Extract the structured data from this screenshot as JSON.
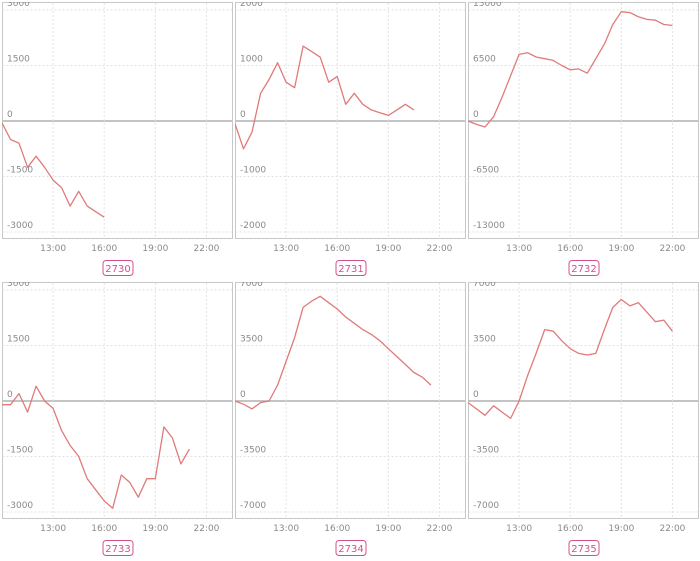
{
  "line_color": "#e07a7a",
  "badge_color": "#d4508a",
  "chart_data": [
    {
      "type": "line",
      "title": "2730",
      "x_tick_labels": [
        "13:00",
        "16:00",
        "19:00",
        "22:00"
      ],
      "y_ticks": [
        3000,
        1500,
        0,
        -1500,
        -3000
      ],
      "y_tick_labels": [
        "3000",
        "1500",
        "0",
        "-1500",
        "-3000"
      ],
      "ylim": [
        -3000,
        3000
      ],
      "grid": true,
      "series": [
        {
          "x": [
            "10:00",
            "10:30",
            "11:00",
            "11:30",
            "12:00",
            "12:30",
            "13:00",
            "13:30",
            "14:00",
            "14:30",
            "15:00",
            "15:30",
            "16:00",
            "16:30"
          ],
          "values": [
            -50,
            -500,
            -600,
            -1250,
            -950,
            -1250,
            -1600,
            -1800,
            -2300,
            -1900,
            -2300,
            -2450,
            -2600,
            null
          ]
        }
      ]
    },
    {
      "type": "line",
      "title": "2731",
      "x_tick_labels": [
        "13:00",
        "16:00",
        "19:00",
        "22:00"
      ],
      "y_ticks": [
        2000,
        1000,
        0,
        -1000,
        -2000
      ],
      "y_tick_labels": [
        "2000",
        "1000",
        "0",
        "-1000",
        "-2000"
      ],
      "ylim": [
        -2000,
        2000
      ],
      "grid": true,
      "series": [
        {
          "x": [
            "10:00",
            "10:30",
            "11:00",
            "11:30",
            "12:00",
            "12:30",
            "13:00",
            "13:30",
            "14:00",
            "14:30",
            "15:00",
            "15:30",
            "16:00",
            "16:30",
            "17:00",
            "17:30",
            "18:00",
            "18:30",
            "19:00",
            "19:30",
            "20:00",
            "20:30",
            "21:00"
          ],
          "values": [
            -50,
            -500,
            -200,
            500,
            750,
            1050,
            700,
            600,
            1350,
            1250,
            1150,
            700,
            800,
            300,
            500,
            300,
            200,
            150,
            100,
            200,
            300,
            200,
            null
          ]
        }
      ]
    },
    {
      "type": "line",
      "title": "2732",
      "x_tick_labels": [
        "13:00",
        "16:00",
        "19:00",
        "22:00"
      ],
      "y_ticks": [
        13000,
        6500,
        0,
        -6500,
        -13000
      ],
      "y_tick_labels": [
        "13000",
        "6500",
        "0",
        "-6500",
        "-13000"
      ],
      "ylim": [
        -13000,
        13000
      ],
      "grid": true,
      "series": [
        {
          "x": [
            "10:00",
            "10:30",
            "11:00",
            "11:30",
            "12:00",
            "12:30",
            "13:00",
            "13:30",
            "14:00",
            "14:30",
            "15:00",
            "15:30",
            "16:00",
            "16:30",
            "17:00",
            "17:30",
            "18:00",
            "18:30",
            "19:00",
            "19:30",
            "20:00",
            "20:30",
            "21:00",
            "21:30",
            "22:00",
            "22:30"
          ],
          "values": [
            0,
            -400,
            -700,
            500,
            2800,
            5300,
            7800,
            8000,
            7500,
            7300,
            7100,
            6500,
            6000,
            6100,
            5600,
            7300,
            9000,
            11300,
            12800,
            12700,
            12200,
            11900,
            11800,
            11300,
            11200,
            null
          ]
        }
      ]
    },
    {
      "type": "line",
      "title": "2733",
      "x_tick_labels": [
        "13:00",
        "16:00",
        "19:00",
        "22:00"
      ],
      "y_ticks": [
        3000,
        1500,
        0,
        -1500,
        -3000
      ],
      "y_tick_labels": [
        "3000",
        "1500",
        "0",
        "-1500",
        "-3000"
      ],
      "ylim": [
        -3000,
        3000
      ],
      "grid": true,
      "series": [
        {
          "x": [
            "10:00",
            "10:30",
            "11:00",
            "11:30",
            "12:00",
            "12:30",
            "13:00",
            "13:30",
            "14:00",
            "14:30",
            "15:00",
            "15:30",
            "16:00",
            "16:30",
            "17:00",
            "17:30",
            "18:00",
            "18:30",
            "19:00",
            "19:30",
            "20:00",
            "20:30",
            "21:00",
            "21:30",
            "22:00"
          ],
          "values": [
            -100,
            -100,
            200,
            -300,
            400,
            0,
            -200,
            -800,
            -1200,
            -1500,
            -2100,
            -2400,
            -2700,
            -2900,
            -2000,
            -2200,
            -2600,
            -2100,
            -2100,
            -700,
            -1000,
            -1700,
            -1300,
            null,
            null
          ]
        }
      ]
    },
    {
      "type": "line",
      "title": "2734",
      "x_tick_labels": [
        "13:00",
        "16:00",
        "19:00",
        "22:00"
      ],
      "y_ticks": [
        7000,
        3500,
        0,
        -3500,
        -7000
      ],
      "y_tick_labels": [
        "7000",
        "3500",
        "0",
        "-3500",
        "-7000"
      ],
      "ylim": [
        -7000,
        7000
      ],
      "grid": true,
      "series": [
        {
          "x": [
            "10:00",
            "10:30",
            "11:00",
            "11:30",
            "12:00",
            "12:30",
            "13:00",
            "13:30",
            "14:00",
            "14:30",
            "15:00",
            "15:30",
            "16:00",
            "16:30",
            "17:00",
            "17:30",
            "18:00",
            "18:30",
            "19:00",
            "19:30",
            "20:00",
            "20:30",
            "21:00",
            "21:30",
            "22:00"
          ],
          "values": [
            0,
            -200,
            -500,
            -100,
            0,
            1000,
            2500,
            4000,
            5900,
            6300,
            6600,
            6200,
            5800,
            5300,
            4900,
            4500,
            4200,
            3800,
            3300,
            2800,
            2300,
            1800,
            1500,
            1000,
            null
          ]
        }
      ]
    },
    {
      "type": "line",
      "title": "2735",
      "x_tick_labels": [
        "13:00",
        "16:00",
        "19:00",
        "22:00"
      ],
      "y_ticks": [
        7000,
        3500,
        0,
        -3500,
        -7000
      ],
      "y_tick_labels": [
        "7000",
        "3500",
        "0",
        "-3500",
        "-7000"
      ],
      "ylim": [
        -7000,
        7000
      ],
      "grid": true,
      "series": [
        {
          "x": [
            "10:00",
            "10:30",
            "11:00",
            "11:30",
            "12:00",
            "12:30",
            "13:00",
            "13:30",
            "14:00",
            "14:30",
            "15:00",
            "15:30",
            "16:00",
            "16:30",
            "17:00",
            "17:30",
            "18:00",
            "18:30",
            "19:00",
            "19:30",
            "20:00",
            "20:30",
            "21:00",
            "21:30",
            "22:00"
          ],
          "values": [
            -100,
            -500,
            -900,
            -300,
            -700,
            -1100,
            0,
            1600,
            3000,
            4500,
            4400,
            3800,
            3300,
            3000,
            2900,
            3000,
            4500,
            5900,
            6400,
            6000,
            6200,
            5600,
            5000,
            5100,
            4400
          ]
        }
      ]
    }
  ]
}
